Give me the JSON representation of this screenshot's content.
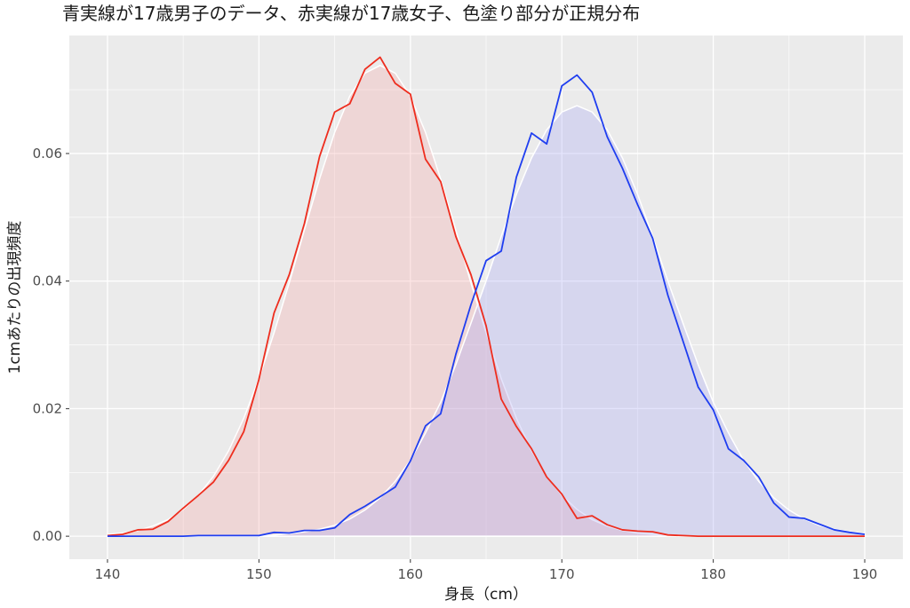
{
  "chart_data": {
    "type": "line",
    "title": "青実線が17歳男子のデータ、赤実線が17歳女子、色塗り部分が正規分布",
    "x_label": "身長（cm）",
    "y_label": "1cmあたりの出現頻度",
    "x": [
      140,
      141,
      142,
      143,
      144,
      145,
      146,
      147,
      148,
      149,
      150,
      151,
      152,
      153,
      154,
      155,
      156,
      157,
      158,
      159,
      160,
      161,
      162,
      163,
      164,
      165,
      166,
      167,
      168,
      169,
      170,
      171,
      172,
      173,
      174,
      175,
      176,
      177,
      178,
      179,
      180,
      181,
      182,
      183,
      184,
      185,
      186,
      187,
      188,
      189,
      190
    ],
    "series": [
      {
        "fill": true,
        "color": "#f4a6a6",
        "values": [
          0.0003,
          0.0005,
          0.0009,
          0.0016,
          0.0026,
          0.0042,
          0.0064,
          0.0094,
          0.0134,
          0.0185,
          0.0247,
          0.0319,
          0.0397,
          0.048,
          0.056,
          0.0633,
          0.069,
          0.0726,
          0.0738,
          0.0726,
          0.069,
          0.0633,
          0.056,
          0.048,
          0.0397,
          0.0319,
          0.0247,
          0.0185,
          0.0134,
          0.0094,
          0.0064,
          0.0042,
          0.0026,
          0.0016,
          0.0009,
          0.0005,
          0.0003,
          0.0001,
          0,
          0,
          0,
          0,
          0,
          0,
          0,
          0,
          0,
          0,
          0,
          0,
          0
        ]
      },
      {
        "fill": true,
        "color": "#a6a6f4",
        "values": [
          0,
          0,
          0,
          0,
          0,
          0,
          0,
          0,
          0,
          0,
          0.0001,
          0.0002,
          0.0004,
          0.0007,
          0.0011,
          0.0017,
          0.0027,
          0.0041,
          0.006,
          0.0086,
          0.0119,
          0.0162,
          0.021,
          0.0269,
          0.0334,
          0.04,
          0.047,
          0.0536,
          0.0593,
          0.0637,
          0.0665,
          0.0675,
          0.0665,
          0.0637,
          0.0593,
          0.0536,
          0.047,
          0.04,
          0.0334,
          0.0269,
          0.021,
          0.0162,
          0.0119,
          0.0086,
          0.006,
          0.0041,
          0.0027,
          0.0017,
          0.0011,
          0.0007,
          0.0004
        ]
      },
      {
        "fill": false,
        "color": "#ee2d1e",
        "values": [
          0.0001,
          0.0003,
          0.001,
          0.0011,
          0.0023,
          0.0044,
          0.0064,
          0.0085,
          0.0119,
          0.0164,
          0.0246,
          0.035,
          0.041,
          0.049,
          0.0595,
          0.0665,
          0.0678,
          0.0732,
          0.0751,
          0.071,
          0.0693,
          0.0591,
          0.0556,
          0.047,
          0.041,
          0.033,
          0.0215,
          0.0172,
          0.0137,
          0.0093,
          0.0066,
          0.0028,
          0.0032,
          0.0018,
          0.001,
          0.0008,
          0.0007,
          0.0002,
          0.0001,
          0,
          0,
          0,
          0,
          0,
          0,
          0,
          0,
          0,
          0,
          0,
          0
        ]
      },
      {
        "fill": false,
        "color": "#1f3ef0",
        "values": [
          0,
          0,
          0,
          0,
          0,
          0,
          0.0001,
          0.0001,
          0.0001,
          0.0001,
          0.0001,
          0.0006,
          0.0005,
          0.0009,
          0.0009,
          0.0013,
          0.0034,
          0.0047,
          0.0062,
          0.0077,
          0.0118,
          0.0173,
          0.0192,
          0.0285,
          0.0363,
          0.0432,
          0.0447,
          0.0563,
          0.0632,
          0.0615,
          0.0706,
          0.0723,
          0.0696,
          0.0626,
          0.0577,
          0.052,
          0.0467,
          0.0378,
          0.0306,
          0.0234,
          0.0198,
          0.0137,
          0.0119,
          0.0093,
          0.0052,
          0.003,
          0.0028,
          0.0019,
          0.001,
          0.0006,
          0.0003
        ]
      }
    ],
    "xlim": [
      137.48,
      192.52
    ],
    "ylim": [
      -0.0036,
      0.0785
    ],
    "xticks": [
      140,
      150,
      160,
      170,
      180,
      190
    ],
    "yticks": [
      {
        "value": 0,
        "label": "0.00"
      },
      {
        "value": 0.02,
        "label": "0.02"
      },
      {
        "value": 0.04,
        "label": "0.04"
      },
      {
        "value": 0.06,
        "label": "0.06"
      }
    ],
    "xminor": [
      145,
      155,
      165,
      175,
      185
    ],
    "yminor": [
      0.01,
      0.03,
      0.05,
      0.07
    ],
    "grid": true
  }
}
